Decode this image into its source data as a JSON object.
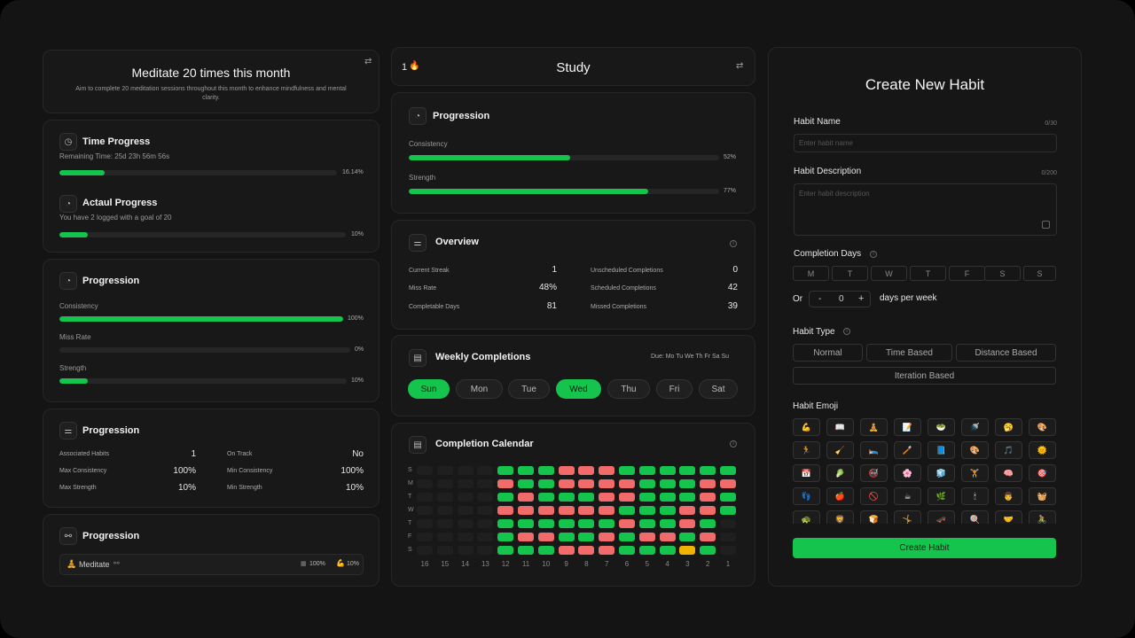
{
  "goal": {
    "title": "Meditate 20 times this month",
    "description": "Aim to complete 20 meditation sessions throughout this month to enhance mindfulness and mental clarity."
  },
  "time_progress": {
    "title": "Time Progress",
    "subtitle": "Remaining Time: 25d 23h 56m 56s",
    "value": 16.14,
    "value_label": "16.14%"
  },
  "actual_progress": {
    "title": "Actaul Progress",
    "subtitle": "You have 2 logged with a goal of 20",
    "value": 10,
    "value_label": "10%"
  },
  "left_progression": {
    "title": "Progression",
    "metrics": [
      {
        "label": "Consistency",
        "value": 100,
        "value_label": "100%"
      },
      {
        "label": "Miss Rate",
        "value": 0,
        "value_label": "0%"
      },
      {
        "label": "Strength",
        "value": 10,
        "value_label": "10%"
      }
    ]
  },
  "summary": {
    "title": "Progression",
    "left": [
      {
        "label": "Associated Habits",
        "value": "1"
      },
      {
        "label": "Max Consistency",
        "value": "100%"
      },
      {
        "label": "Max Strength",
        "value": "10%"
      }
    ],
    "right": [
      {
        "label": "On Track",
        "value": "No"
      },
      {
        "label": "Min Consistency",
        "value": "100%"
      },
      {
        "label": "Min Strength",
        "value": "10%"
      }
    ]
  },
  "linked": {
    "title": "Progression",
    "item": {
      "emoji": "🧘",
      "name": "Meditate",
      "stat1": "100%",
      "stat2": "10%"
    }
  },
  "study": {
    "streak": "1",
    "title": "Study"
  },
  "mid_progression": {
    "title": "Progression",
    "metrics": [
      {
        "label": "Consistency",
        "value": 52,
        "value_label": "52%"
      },
      {
        "label": "Strength",
        "value": 77,
        "value_label": "77%"
      }
    ]
  },
  "overview": {
    "title": "Overview",
    "left": [
      {
        "label": "Current Streak",
        "value": "1"
      },
      {
        "label": "Miss Rate",
        "value": "48%"
      },
      {
        "label": "Completable Days",
        "value": "81"
      }
    ],
    "right": [
      {
        "label": "Unscheduled Completions",
        "value": "0"
      },
      {
        "label": "Scheduled Completions",
        "value": "42"
      },
      {
        "label": "Missed Completions",
        "value": "39"
      }
    ]
  },
  "weekly": {
    "title": "Weekly Completions",
    "due": "Due: Mo Tu We Th Fr Sa Su",
    "days": [
      {
        "label": "Sun",
        "on": true
      },
      {
        "label": "Mon",
        "on": false
      },
      {
        "label": "Tue",
        "on": false
      },
      {
        "label": "Wed",
        "on": true
      },
      {
        "label": "Thu",
        "on": false
      },
      {
        "label": "Fri",
        "on": false
      },
      {
        "label": "Sat",
        "on": false
      }
    ]
  },
  "calendar": {
    "title": "Completion Calendar",
    "row_labels": [
      "S",
      "M",
      "T",
      "W",
      "T",
      "F",
      "S"
    ],
    "col_labels": [
      "16",
      "15",
      "14",
      "13",
      "12",
      "11",
      "10",
      "9",
      "8",
      "7",
      "6",
      "5",
      "4",
      "3",
      "2",
      "1"
    ],
    "legend_note": "e = empty, g = completed, r = missed, y = partial, x = future",
    "grid": [
      "eeeegggrrrgggggg",
      "eeeerggrrrrgggrr",
      "eeeegrgggrrgggrg",
      "eeeerrrrrrgggrrg",
      "eeeeggggggrggrgx",
      "eeeegrrggrgrrgrx",
      "eeeegggrrrgggygx"
    ],
    "colors": {
      "g": "#14c44d",
      "r": "#f26b6b",
      "y": "#f0b400",
      "e": "#1f1f1f",
      "x": "#1f1f1f"
    }
  },
  "form": {
    "title": "Create New Habit",
    "name_label": "Habit Name",
    "name_count": "0/30",
    "name_placeholder": "Enter habit name",
    "desc_label": "Habit Description",
    "desc_count": "0/200",
    "desc_placeholder": "Enter habit description",
    "days_label": "Completion Days",
    "days": [
      "M",
      "T",
      "W",
      "T",
      "F",
      "S",
      "S"
    ],
    "or_label": "Or",
    "minus": "-",
    "count": "0",
    "plus": "+",
    "per_week": "days per week",
    "type_label": "Habit Type",
    "types": [
      "Normal",
      "Time Based",
      "Distance Based",
      "Iteration Based"
    ],
    "emoji_label": "Habit Emoji",
    "emojis": [
      "💪",
      "📖",
      "🧘",
      "📝",
      "🥗",
      "🚿",
      "🥱",
      "🎨",
      "🏃",
      "🧹",
      "🛌",
      "🪥",
      "📘",
      "🎨",
      "🎵",
      "🌞",
      "📅",
      "🥬",
      "🚭",
      "🌸",
      "🧊",
      "🏋",
      "🧠",
      "🎯",
      "👣",
      "🍎",
      "🚫",
      "☕",
      "🌿",
      "🕯",
      "👨",
      "🧺",
      "🐢",
      "🦁",
      "🍞",
      "🤸",
      "🛹",
      "🍭",
      "🤝",
      "🚴"
    ],
    "submit": "Create Habit"
  }
}
